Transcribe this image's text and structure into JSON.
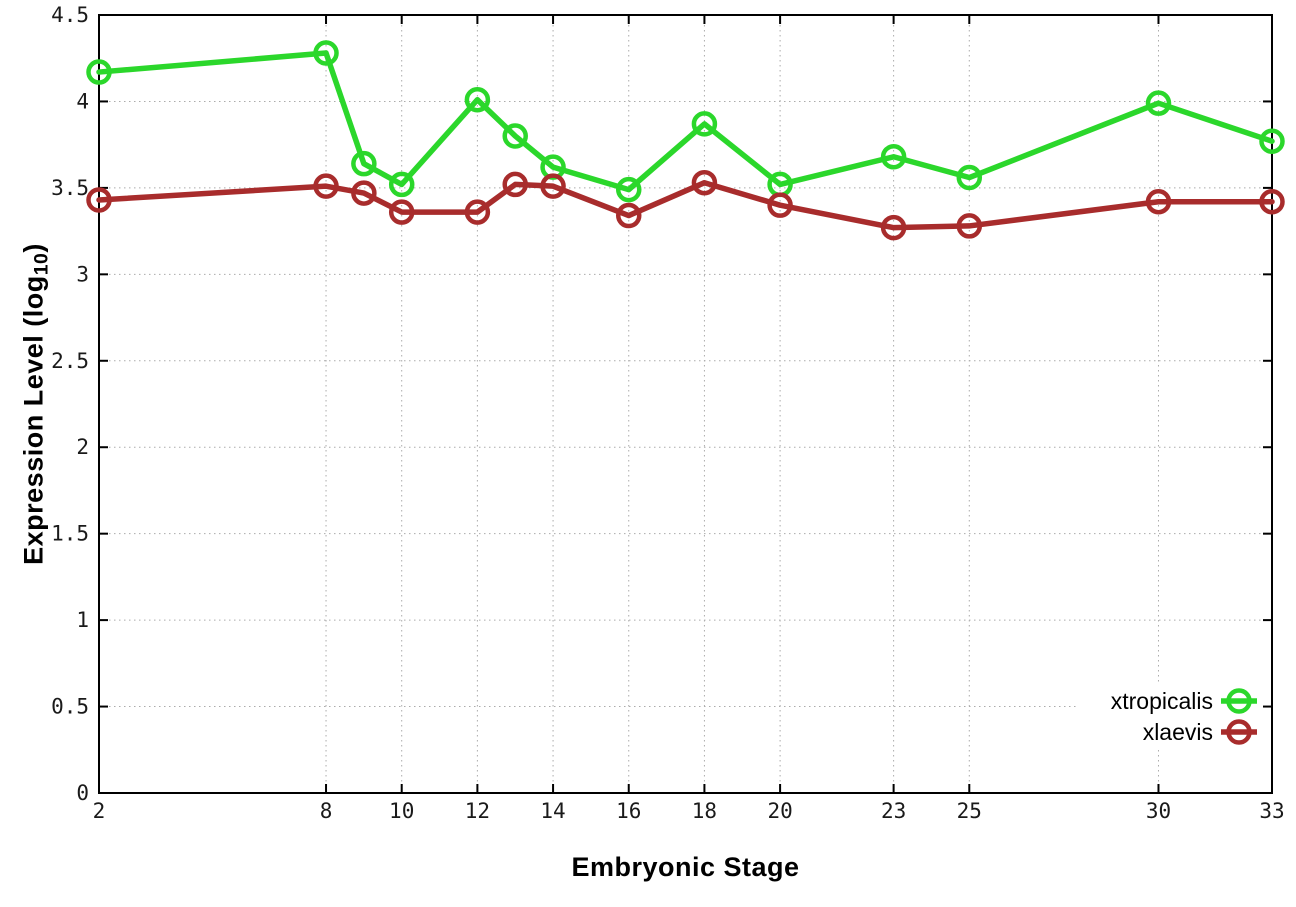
{
  "chart_data": {
    "type": "line",
    "title": "",
    "xlabel": "Embryonic Stage",
    "ylabel": "Expression Level (log10)",
    "ylabel_parts": {
      "pre": "Expression Level (log",
      "sub": "10",
      "post": ")"
    },
    "x": [
      2,
      8,
      9,
      10,
      12,
      13,
      14,
      16,
      18,
      20,
      23,
      25,
      30,
      33
    ],
    "xlim": [
      2,
      33
    ],
    "ylim": [
      0,
      4.5
    ],
    "xticks": [
      2,
      8,
      10,
      12,
      14,
      16,
      18,
      20,
      23,
      25,
      30,
      33
    ],
    "yticks": [
      0,
      0.5,
      1,
      1.5,
      2,
      2.5,
      3,
      3.5,
      4,
      4.5
    ],
    "grid": true,
    "legend_position": "bottom-right",
    "series": [
      {
        "name": "xtropicalis",
        "color": "#2bd72b",
        "values": [
          4.17,
          4.28,
          3.64,
          3.52,
          4.01,
          3.8,
          3.62,
          3.49,
          3.87,
          3.52,
          3.68,
          3.56,
          3.99,
          3.77
        ]
      },
      {
        "name": "xlaevis",
        "color": "#a82c2c",
        "values": [
          3.43,
          3.51,
          3.47,
          3.36,
          3.36,
          3.52,
          3.51,
          3.34,
          3.53,
          3.4,
          3.27,
          3.28,
          3.42,
          3.42
        ]
      }
    ]
  },
  "colors": {
    "background": "#ffffff",
    "grid": "#ababab",
    "border": "#000000",
    "tick_text": "#1a1a1a",
    "title_text": "#000000"
  }
}
